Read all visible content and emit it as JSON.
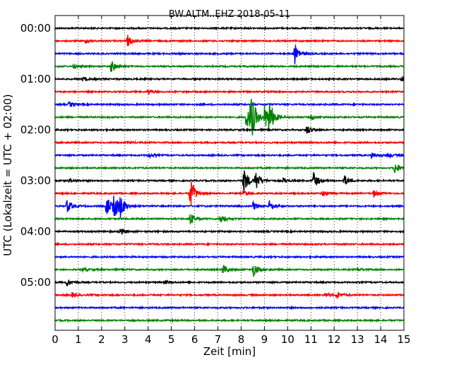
{
  "chart_data": {
    "type": "helicorder",
    "title": "BW.ALTM..EHZ 2018-05-11",
    "xlabel": "Zeit  [min]",
    "ylabel": "UTC (Lokalzeit = UTC + 02:00)",
    "xlim": [
      0,
      15
    ],
    "x_ticks": [
      "0",
      "1",
      "2",
      "3",
      "4",
      "5",
      "6",
      "7",
      "8",
      "9",
      "10",
      "11",
      "12",
      "13",
      "14",
      "15"
    ],
    "y_tick_labels": [
      "00:00",
      "01:00",
      "02:00",
      "03:00",
      "04:00",
      "05:00"
    ],
    "trace_minutes": 15,
    "trace_colors": [
      "#000000",
      "#ff0000",
      "#0000ff",
      "#008000"
    ],
    "traces": [
      {
        "start": "00:00",
        "events": []
      },
      {
        "start": "00:15",
        "events": [
          {
            "t": 3.1,
            "amp": 0.5
          },
          {
            "t": 1.3,
            "amp": 0.15
          }
        ]
      },
      {
        "start": "00:30",
        "events": [
          {
            "t": 10.3,
            "amp": 0.9
          }
        ]
      },
      {
        "start": "00:45",
        "events": [
          {
            "t": 2.4,
            "amp": 0.5
          },
          {
            "t": 0.8,
            "amp": 0.15
          }
        ]
      },
      {
        "start": "01:00",
        "events": [
          {
            "t": 1.2,
            "amp": 0.2
          },
          {
            "t": 14.9,
            "amp": 0.25
          }
        ]
      },
      {
        "start": "01:15",
        "events": [
          {
            "t": 4.0,
            "amp": 0.2
          }
        ]
      },
      {
        "start": "01:30",
        "events": [
          {
            "t": 0.6,
            "amp": 0.2
          }
        ]
      },
      {
        "start": "01:45",
        "events": [
          {
            "t": 8.2,
            "amp": 1.0
          },
          {
            "t": 8.4,
            "amp": 2.0
          },
          {
            "t": 9.0,
            "amp": 1.0
          },
          {
            "t": 9.2,
            "amp": 1.2
          },
          {
            "t": 11.0,
            "amp": 0.2
          }
        ]
      },
      {
        "start": "02:00",
        "events": [
          {
            "t": 10.8,
            "amp": 0.4
          }
        ]
      },
      {
        "start": "02:15",
        "events": [
          {
            "t": 3.1,
            "amp": 0.1
          }
        ]
      },
      {
        "start": "02:30",
        "events": [
          {
            "t": 4.0,
            "amp": 0.2
          },
          {
            "t": 13.6,
            "amp": 0.25
          },
          {
            "t": 14.3,
            "amp": 0.2
          }
        ]
      },
      {
        "start": "02:45",
        "events": [
          {
            "t": 14.6,
            "amp": 0.5
          }
        ]
      },
      {
        "start": "03:00",
        "events": [
          {
            "t": 8.1,
            "amp": 1.1
          },
          {
            "t": 8.6,
            "amp": 0.9
          },
          {
            "t": 11.1,
            "amp": 0.7
          },
          {
            "t": 12.4,
            "amp": 0.5
          },
          {
            "t": 9.8,
            "amp": 0.2
          },
          {
            "t": 0.6,
            "amp": 0.15
          }
        ]
      },
      {
        "start": "03:15",
        "events": [
          {
            "t": 5.8,
            "amp": 1.3
          },
          {
            "t": 11.5,
            "amp": 0.25
          },
          {
            "t": 13.7,
            "amp": 0.25
          },
          {
            "t": 8.1,
            "amp": 0.25
          }
        ]
      },
      {
        "start": "03:30",
        "events": [
          {
            "t": 0.5,
            "amp": 0.6
          },
          {
            "t": 2.2,
            "amp": 0.9
          },
          {
            "t": 2.5,
            "amp": 1.3
          },
          {
            "t": 2.8,
            "amp": 0.7
          },
          {
            "t": 8.5,
            "amp": 0.35
          },
          {
            "t": 9.2,
            "amp": 0.45
          }
        ]
      },
      {
        "start": "03:45",
        "events": [
          {
            "t": 7.1,
            "amp": 0.4
          },
          {
            "t": 5.8,
            "amp": 0.5
          }
        ]
      },
      {
        "start": "04:00",
        "events": [
          {
            "t": 2.8,
            "amp": 0.25
          }
        ]
      },
      {
        "start": "04:15",
        "events": []
      },
      {
        "start": "04:30",
        "events": []
      },
      {
        "start": "04:45",
        "events": [
          {
            "t": 7.2,
            "amp": 0.4
          },
          {
            "t": 8.5,
            "amp": 0.6
          },
          {
            "t": 1.2,
            "amp": 0.15
          },
          {
            "t": 13.0,
            "amp": 0.15
          }
        ]
      },
      {
        "start": "05:00",
        "events": [
          {
            "t": 0.5,
            "amp": 0.3
          },
          {
            "t": 4.7,
            "amp": 0.15
          }
        ]
      },
      {
        "start": "05:15",
        "events": [
          {
            "t": 0.7,
            "amp": 0.2
          },
          {
            "t": 12.1,
            "amp": 0.3
          },
          {
            "t": 11.6,
            "amp": 0.15
          }
        ]
      },
      {
        "start": "05:30",
        "events": []
      },
      {
        "start": "05:45",
        "events": []
      }
    ]
  }
}
